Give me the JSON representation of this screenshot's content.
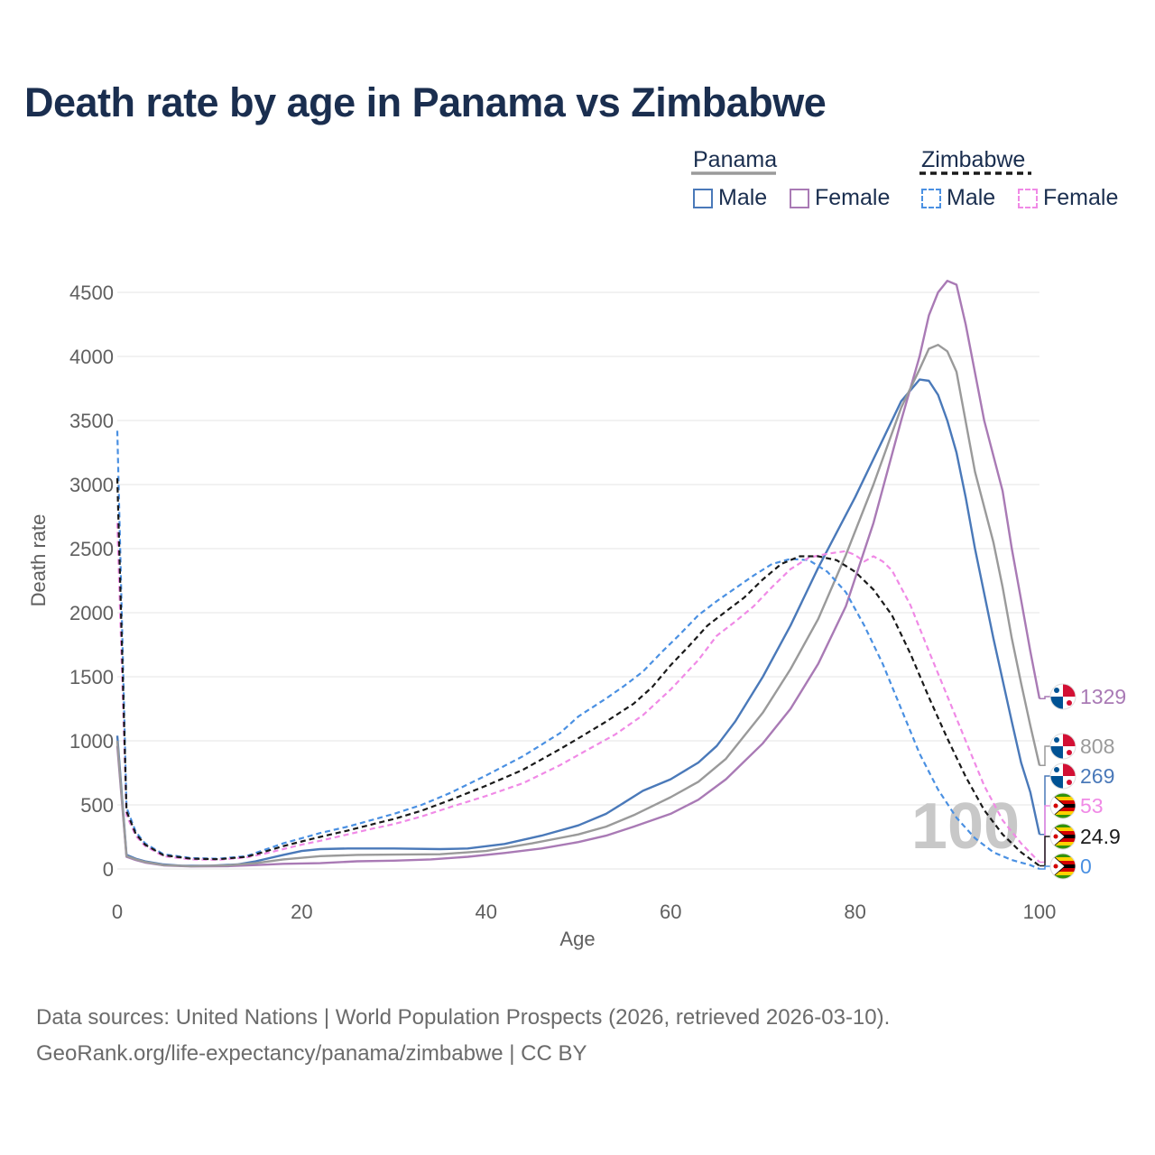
{
  "title": "Death rate by age in Panama vs Zimbabwe",
  "legend": {
    "groups": [
      {
        "name": "Panama",
        "items": [
          {
            "label": "Male"
          },
          {
            "label": "Female"
          }
        ]
      },
      {
        "name": "Zimbabwe",
        "items": [
          {
            "label": "Male"
          },
          {
            "label": "Female"
          }
        ]
      }
    ]
  },
  "source": {
    "line1": "Data sources: United Nations | World Population Prospects (2026, retrieved 2026-03-10).",
    "line2": "GeoRank.org/life-expectancy/panama/zimbabwe | CC BY"
  },
  "colors": {
    "panama_male": "#4a79b9",
    "panama_female": "#a97ab5",
    "panama_total": "#9a9a9a",
    "zimbabwe_male": "#4a90e2",
    "zimbabwe_female": "#f08ae6",
    "zimbabwe_total": "#1a1a1a",
    "title": "#1a2e4f",
    "grid": "#e6e6e6",
    "axis_text": "#5f5f5f",
    "watermark": "#c8c8c8"
  },
  "chart_data": {
    "type": "line",
    "xlabel": "Age",
    "ylabel": "Death rate",
    "xlim": [
      0,
      100
    ],
    "ylim": [
      0,
      4500
    ],
    "xticks": [
      0,
      20,
      40,
      60,
      80,
      100
    ],
    "yticks": [
      0,
      500,
      1000,
      1500,
      2000,
      2500,
      3000,
      3500,
      4000,
      4500
    ],
    "watermark": "100",
    "series": [
      {
        "name": "Panama Male",
        "country": "Panama",
        "sex": "Male",
        "color": "#4a79b9",
        "dashed": false,
        "points": [
          [
            0,
            1040
          ],
          [
            1,
            110
          ],
          [
            2,
            80
          ],
          [
            3,
            60
          ],
          [
            5,
            35
          ],
          [
            7,
            25
          ],
          [
            10,
            25
          ],
          [
            13,
            35
          ],
          [
            15,
            60
          ],
          [
            18,
            110
          ],
          [
            20,
            140
          ],
          [
            22,
            155
          ],
          [
            25,
            160
          ],
          [
            30,
            160
          ],
          [
            35,
            155
          ],
          [
            38,
            160
          ],
          [
            42,
            195
          ],
          [
            46,
            260
          ],
          [
            50,
            340
          ],
          [
            53,
            430
          ],
          [
            55,
            520
          ],
          [
            57,
            610
          ],
          [
            60,
            700
          ],
          [
            63,
            830
          ],
          [
            65,
            960
          ],
          [
            67,
            1150
          ],
          [
            70,
            1500
          ],
          [
            73,
            1900
          ],
          [
            76,
            2350
          ],
          [
            80,
            2900
          ],
          [
            83,
            3350
          ],
          [
            85,
            3650
          ],
          [
            87,
            3820
          ],
          [
            88,
            3810
          ],
          [
            89,
            3700
          ],
          [
            90,
            3500
          ],
          [
            91,
            3250
          ],
          [
            92,
            2900
          ],
          [
            93,
            2500
          ],
          [
            95,
            1800
          ],
          [
            97,
            1150
          ],
          [
            98,
            830
          ],
          [
            99,
            600
          ],
          [
            100,
            270
          ]
        ]
      },
      {
        "name": "Panama Female",
        "country": "Panama",
        "sex": "Female",
        "color": "#a97ab5",
        "dashed": false,
        "points": [
          [
            0,
            960
          ],
          [
            1,
            95
          ],
          [
            2,
            70
          ],
          [
            3,
            50
          ],
          [
            5,
            28
          ],
          [
            8,
            20
          ],
          [
            12,
            22
          ],
          [
            15,
            30
          ],
          [
            18,
            40
          ],
          [
            22,
            45
          ],
          [
            26,
            60
          ],
          [
            30,
            65
          ],
          [
            34,
            75
          ],
          [
            38,
            95
          ],
          [
            42,
            125
          ],
          [
            46,
            160
          ],
          [
            50,
            210
          ],
          [
            53,
            260
          ],
          [
            56,
            330
          ],
          [
            60,
            430
          ],
          [
            63,
            540
          ],
          [
            66,
            700
          ],
          [
            70,
            980
          ],
          [
            73,
            1250
          ],
          [
            76,
            1600
          ],
          [
            79,
            2050
          ],
          [
            82,
            2700
          ],
          [
            85,
            3500
          ],
          [
            87,
            4000
          ],
          [
            88,
            4320
          ],
          [
            89,
            4500
          ],
          [
            90,
            4590
          ],
          [
            91,
            4560
          ],
          [
            92,
            4250
          ],
          [
            94,
            3500
          ],
          [
            96,
            2950
          ],
          [
            97,
            2500
          ],
          [
            98,
            2100
          ],
          [
            99,
            1700
          ],
          [
            100,
            1329
          ]
        ]
      },
      {
        "name": "Panama Total",
        "country": "Panama",
        "sex": "Total",
        "color": "#9a9a9a",
        "dashed": false,
        "points": [
          [
            0,
            1000
          ],
          [
            1,
            100
          ],
          [
            2,
            75
          ],
          [
            3,
            55
          ],
          [
            5,
            30
          ],
          [
            8,
            22
          ],
          [
            12,
            28
          ],
          [
            15,
            45
          ],
          [
            18,
            75
          ],
          [
            22,
            100
          ],
          [
            26,
            110
          ],
          [
            30,
            112
          ],
          [
            35,
            115
          ],
          [
            40,
            140
          ],
          [
            45,
            200
          ],
          [
            50,
            270
          ],
          [
            53,
            330
          ],
          [
            56,
            420
          ],
          [
            60,
            560
          ],
          [
            63,
            680
          ],
          [
            66,
            860
          ],
          [
            70,
            1220
          ],
          [
            73,
            1560
          ],
          [
            76,
            1950
          ],
          [
            79,
            2450
          ],
          [
            82,
            3000
          ],
          [
            85,
            3600
          ],
          [
            87,
            3900
          ],
          [
            88,
            4060
          ],
          [
            89,
            4090
          ],
          [
            90,
            4040
          ],
          [
            91,
            3880
          ],
          [
            93,
            3100
          ],
          [
            95,
            2550
          ],
          [
            96,
            2200
          ],
          [
            97,
            1800
          ],
          [
            98,
            1450
          ],
          [
            99,
            1120
          ],
          [
            100,
            808
          ]
        ]
      },
      {
        "name": "Zimbabwe Male",
        "country": "Zimbabwe",
        "sex": "Male",
        "color": "#4a90e2",
        "dashed": true,
        "points": [
          [
            0,
            3420
          ],
          [
            1,
            480
          ],
          [
            2,
            290
          ],
          [
            3,
            200
          ],
          [
            5,
            115
          ],
          [
            8,
            85
          ],
          [
            11,
            80
          ],
          [
            14,
            100
          ],
          [
            16,
            150
          ],
          [
            18,
            200
          ],
          [
            20,
            240
          ],
          [
            22,
            280
          ],
          [
            25,
            330
          ],
          [
            28,
            390
          ],
          [
            30,
            430
          ],
          [
            33,
            500
          ],
          [
            36,
            590
          ],
          [
            40,
            730
          ],
          [
            44,
            880
          ],
          [
            48,
            1060
          ],
          [
            50,
            1190
          ],
          [
            53,
            1330
          ],
          [
            55,
            1430
          ],
          [
            57,
            1540
          ],
          [
            59,
            1690
          ],
          [
            61,
            1830
          ],
          [
            63,
            1980
          ],
          [
            65,
            2090
          ],
          [
            67,
            2190
          ],
          [
            69,
            2290
          ],
          [
            71,
            2380
          ],
          [
            73,
            2420
          ],
          [
            75,
            2410
          ],
          [
            77,
            2320
          ],
          [
            79,
            2160
          ],
          [
            81,
            1900
          ],
          [
            83,
            1600
          ],
          [
            85,
            1250
          ],
          [
            87,
            900
          ],
          [
            89,
            620
          ],
          [
            91,
            400
          ],
          [
            93,
            240
          ],
          [
            95,
            130
          ],
          [
            97,
            70
          ],
          [
            99,
            30
          ],
          [
            100,
            0
          ]
        ]
      },
      {
        "name": "Zimbabwe Female",
        "country": "Zimbabwe",
        "sex": "Female",
        "color": "#f08ae6",
        "dashed": true,
        "points": [
          [
            0,
            2700
          ],
          [
            1,
            420
          ],
          [
            2,
            260
          ],
          [
            3,
            180
          ],
          [
            5,
            100
          ],
          [
            8,
            75
          ],
          [
            11,
            72
          ],
          [
            14,
            90
          ],
          [
            16,
            120
          ],
          [
            18,
            155
          ],
          [
            20,
            190
          ],
          [
            22,
            220
          ],
          [
            25,
            270
          ],
          [
            28,
            320
          ],
          [
            30,
            350
          ],
          [
            33,
            410
          ],
          [
            36,
            480
          ],
          [
            40,
            570
          ],
          [
            44,
            670
          ],
          [
            48,
            810
          ],
          [
            51,
            930
          ],
          [
            54,
            1050
          ],
          [
            57,
            1200
          ],
          [
            60,
            1400
          ],
          [
            63,
            1630
          ],
          [
            65,
            1820
          ],
          [
            67,
            1930
          ],
          [
            69,
            2050
          ],
          [
            71,
            2200
          ],
          [
            73,
            2340
          ],
          [
            75,
            2430
          ],
          [
            77,
            2460
          ],
          [
            79,
            2480
          ],
          [
            80,
            2450
          ],
          [
            81,
            2400
          ],
          [
            82,
            2440
          ],
          [
            83,
            2400
          ],
          [
            84,
            2330
          ],
          [
            86,
            2060
          ],
          [
            88,
            1700
          ],
          [
            90,
            1350
          ],
          [
            92,
            1000
          ],
          [
            94,
            650
          ],
          [
            96,
            380
          ],
          [
            98,
            200
          ],
          [
            100,
            53
          ]
        ]
      },
      {
        "name": "Zimbabwe Total",
        "country": "Zimbabwe",
        "sex": "Total",
        "color": "#1a1a1a",
        "dashed": true,
        "points": [
          [
            0,
            3050
          ],
          [
            1,
            450
          ],
          [
            2,
            275
          ],
          [
            3,
            190
          ],
          [
            5,
            108
          ],
          [
            8,
            80
          ],
          [
            11,
            76
          ],
          [
            14,
            95
          ],
          [
            16,
            135
          ],
          [
            18,
            178
          ],
          [
            20,
            215
          ],
          [
            22,
            250
          ],
          [
            25,
            300
          ],
          [
            28,
            355
          ],
          [
            30,
            390
          ],
          [
            33,
            455
          ],
          [
            36,
            535
          ],
          [
            40,
            650
          ],
          [
            44,
            775
          ],
          [
            48,
            935
          ],
          [
            50,
            1020
          ],
          [
            53,
            1150
          ],
          [
            56,
            1290
          ],
          [
            58,
            1420
          ],
          [
            60,
            1590
          ],
          [
            62,
            1740
          ],
          [
            64,
            1900
          ],
          [
            66,
            2010
          ],
          [
            68,
            2120
          ],
          [
            70,
            2260
          ],
          [
            72,
            2380
          ],
          [
            74,
            2440
          ],
          [
            76,
            2440
          ],
          [
            78,
            2410
          ],
          [
            80,
            2320
          ],
          [
            82,
            2180
          ],
          [
            84,
            1980
          ],
          [
            86,
            1680
          ],
          [
            88,
            1340
          ],
          [
            90,
            1020
          ],
          [
            92,
            720
          ],
          [
            94,
            460
          ],
          [
            96,
            270
          ],
          [
            98,
            130
          ],
          [
            100,
            24.9
          ]
        ]
      }
    ],
    "end_labels": [
      {
        "text": "1329",
        "country": "Panama",
        "color": "#a97ab5",
        "value": 1329
      },
      {
        "text": "808",
        "country": "Panama",
        "color": "#9a9a9a",
        "value": 808
      },
      {
        "text": "269",
        "country": "Panama",
        "color": "#4a79b9",
        "value": 269
      },
      {
        "text": "53",
        "country": "Zimbabwe",
        "color": "#f08ae6",
        "value": 53
      },
      {
        "text": "24.9",
        "country": "Zimbabwe",
        "color": "#1a1a1a",
        "value": 24.9
      },
      {
        "text": "0",
        "country": "Zimbabwe",
        "color": "#4a90e2",
        "value": 0
      }
    ]
  }
}
